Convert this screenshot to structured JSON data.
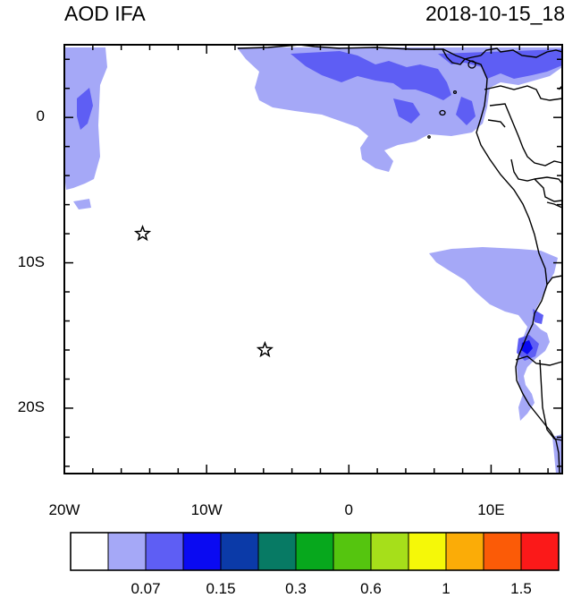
{
  "header": {
    "title": "AOD IFA",
    "datetime": "2018-10-15_18"
  },
  "map": {
    "lon_range": [
      -20,
      15
    ],
    "lat_range": [
      -24.5,
      5
    ],
    "x_ticks": [
      {
        "label": "20W",
        "lon": -20
      },
      {
        "label": "10W",
        "lon": -10
      },
      {
        "label": "0",
        "lon": 0
      },
      {
        "label": "10E",
        "lon": 10
      }
    ],
    "y_ticks": [
      {
        "label": "0",
        "lat": 0
      },
      {
        "label": "10S",
        "lat": -10
      },
      {
        "label": "20S",
        "lat": -20
      }
    ],
    "markers": [
      {
        "symbol": "star",
        "lon": -14.5,
        "lat": -8
      },
      {
        "symbol": "star",
        "lon": -5.9,
        "lat": -16
      }
    ]
  },
  "colorbar": {
    "colors": [
      "#ffffff",
      "#a5a8f7",
      "#5e5ef4",
      "#0a0af2",
      "#0b3aa8",
      "#077a64",
      "#07a81d",
      "#55c50f",
      "#a6df1a",
      "#f5f808",
      "#fbac07",
      "#fb5b07",
      "#fb1919"
    ],
    "labels": [
      {
        "text": "0.07",
        "boundary": 2
      },
      {
        "text": "0.15",
        "boundary": 4
      },
      {
        "text": "0.3",
        "boundary": 6
      },
      {
        "text": "0.6",
        "boundary": 8
      },
      {
        "text": "1",
        "boundary": 10
      },
      {
        "text": "1.5",
        "boundary": 12
      }
    ]
  }
}
